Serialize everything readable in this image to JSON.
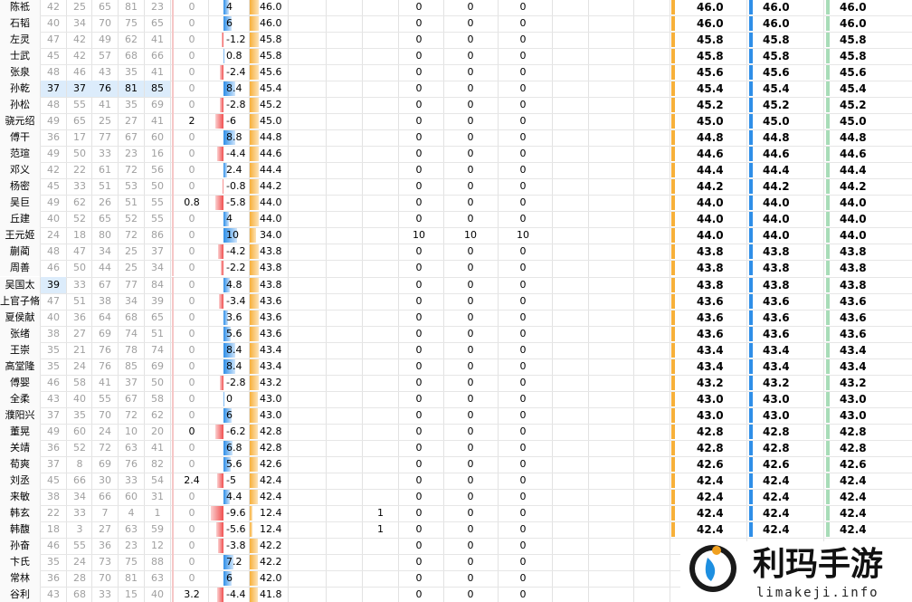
{
  "columns_count": 15,
  "rows": [
    {
      "name": "陈祗",
      "stats": [
        "42",
        "25",
        "65",
        "81",
        "23"
      ],
      "c6": "0",
      "c7": "4",
      "c8": "46.0",
      "c9": null,
      "c10": "0",
      "c11": "0",
      "c12": "0",
      "r1": "46.0",
      "r2": "46.0",
      "r3": "46.0"
    },
    {
      "name": "石韬",
      "stats": [
        "40",
        "34",
        "70",
        "75",
        "65"
      ],
      "c6": "0",
      "c7": "6",
      "c8": "46.0",
      "c9": null,
      "c10": "0",
      "c11": "0",
      "c12": "0",
      "r1": "46.0",
      "r2": "46.0",
      "r3": "46.0"
    },
    {
      "name": "左灵",
      "stats": [
        "47",
        "42",
        "49",
        "62",
        "41"
      ],
      "c6": "0",
      "c7": "-1.2",
      "c8": "45.8",
      "c9": null,
      "c10": "0",
      "c11": "0",
      "c12": "0",
      "r1": "45.8",
      "r2": "45.8",
      "r3": "45.8"
    },
    {
      "name": "士武",
      "stats": [
        "45",
        "42",
        "57",
        "68",
        "66"
      ],
      "c6": "0",
      "c7": "0.8",
      "c8": "45.8",
      "c9": null,
      "c10": "0",
      "c11": "0",
      "c12": "0",
      "r1": "45.8",
      "r2": "45.8",
      "r3": "45.8"
    },
    {
      "name": "张泉",
      "stats": [
        "48",
        "46",
        "43",
        "35",
        "41"
      ],
      "c6": "0",
      "c7": "-2.4",
      "c8": "45.6",
      "c9": null,
      "c10": "0",
      "c11": "0",
      "c12": "0",
      "r1": "45.6",
      "r2": "45.6",
      "r3": "45.6"
    },
    {
      "name": "孙乾",
      "stats": [
        "37",
        "37",
        "76",
        "81",
        "85"
      ],
      "highlight": [
        0,
        1,
        2,
        3,
        4
      ],
      "c6": "0",
      "c7": "8.4",
      "c8": "45.4",
      "c9": null,
      "c10": "0",
      "c11": "0",
      "c12": "0",
      "r1": "45.4",
      "r2": "45.4",
      "r3": "45.4"
    },
    {
      "name": "孙松",
      "stats": [
        "48",
        "55",
        "41",
        "35",
        "69"
      ],
      "c6": "0",
      "c7": "-2.8",
      "c8": "45.2",
      "c9": null,
      "c10": "0",
      "c11": "0",
      "c12": "0",
      "r1": "45.2",
      "r2": "45.2",
      "r3": "45.2"
    },
    {
      "name": "骁元绍",
      "stats": [
        "49",
        "65",
        "25",
        "27",
        "41"
      ],
      "c6": "2",
      "c7": "-6",
      "c8": "45.0",
      "c9": null,
      "c10": "0",
      "c11": "0",
      "c12": "0",
      "r1": "45.0",
      "r2": "45.0",
      "r3": "45.0"
    },
    {
      "name": "傅干",
      "stats": [
        "36",
        "17",
        "77",
        "67",
        "60"
      ],
      "c6": "0",
      "c7": "8.8",
      "c8": "44.8",
      "c9": null,
      "c10": "0",
      "c11": "0",
      "c12": "0",
      "r1": "44.8",
      "r2": "44.8",
      "r3": "44.8"
    },
    {
      "name": "范瑄",
      "stats": [
        "49",
        "50",
        "33",
        "23",
        "16"
      ],
      "c6": "0",
      "c7": "-4.4",
      "c8": "44.6",
      "c9": null,
      "c10": "0",
      "c11": "0",
      "c12": "0",
      "r1": "44.6",
      "r2": "44.6",
      "r3": "44.6"
    },
    {
      "name": "邓义",
      "stats": [
        "42",
        "22",
        "61",
        "72",
        "56"
      ],
      "c6": "0",
      "c7": "2.4",
      "c8": "44.4",
      "c9": null,
      "c10": "0",
      "c11": "0",
      "c12": "0",
      "r1": "44.4",
      "r2": "44.4",
      "r3": "44.4"
    },
    {
      "name": "杨密",
      "stats": [
        "45",
        "33",
        "51",
        "53",
        "50"
      ],
      "c6": "0",
      "c7": "-0.8",
      "c8": "44.2",
      "c9": null,
      "c10": "0",
      "c11": "0",
      "c12": "0",
      "r1": "44.2",
      "r2": "44.2",
      "r3": "44.2"
    },
    {
      "name": "吴巨",
      "stats": [
        "49",
        "62",
        "26",
        "51",
        "55"
      ],
      "c6": "0.8",
      "c7": "-5.8",
      "c8": "44.0",
      "c9": null,
      "c10": "0",
      "c11": "0",
      "c12": "0",
      "r1": "44.0",
      "r2": "44.0",
      "r3": "44.0"
    },
    {
      "name": "丘建",
      "stats": [
        "40",
        "52",
        "65",
        "52",
        "55"
      ],
      "c6": "0",
      "c7": "4",
      "c8": "44.0",
      "c9": null,
      "c10": "0",
      "c11": "0",
      "c12": "0",
      "r1": "44.0",
      "r2": "44.0",
      "r3": "44.0"
    },
    {
      "name": "王元姬",
      "stats": [
        "24",
        "18",
        "80",
        "72",
        "86"
      ],
      "c6": "0",
      "c7": "10",
      "c8": "34.0",
      "c9": null,
      "c10": "10",
      "c11": "10",
      "c12": "10",
      "r1": "44.0",
      "r2": "44.0",
      "r3": "44.0"
    },
    {
      "name": "蒯蔺",
      "stats": [
        "48",
        "47",
        "34",
        "25",
        "37"
      ],
      "c6": "0",
      "c7": "-4.2",
      "c8": "43.8",
      "c9": null,
      "c10": "0",
      "c11": "0",
      "c12": "0",
      "r1": "43.8",
      "r2": "43.8",
      "r3": "43.8"
    },
    {
      "name": "周善",
      "stats": [
        "46",
        "50",
        "44",
        "25",
        "34"
      ],
      "c6": "0",
      "c7": "-2.2",
      "c8": "43.8",
      "c9": null,
      "c10": "0",
      "c11": "0",
      "c12": "0",
      "r1": "43.8",
      "r2": "43.8",
      "r3": "43.8"
    },
    {
      "name": "吴国太",
      "stats": [
        "39",
        "33",
        "67",
        "77",
        "84"
      ],
      "highlight": [
        0
      ],
      "c6": "0",
      "c7": "4.8",
      "c8": "43.8",
      "c9": null,
      "c10": "0",
      "c11": "0",
      "c12": "0",
      "r1": "43.8",
      "r2": "43.8",
      "r3": "43.8"
    },
    {
      "name": "上官子脩",
      "stats": [
        "47",
        "51",
        "38",
        "34",
        "39"
      ],
      "c6": "0",
      "c7": "-3.4",
      "c8": "43.6",
      "c9": null,
      "c10": "0",
      "c11": "0",
      "c12": "0",
      "r1": "43.6",
      "r2": "43.6",
      "r3": "43.6"
    },
    {
      "name": "夏侯献",
      "stats": [
        "40",
        "36",
        "64",
        "68",
        "65"
      ],
      "c6": "0",
      "c7": "3.6",
      "c8": "43.6",
      "c9": null,
      "c10": "0",
      "c11": "0",
      "c12": "0",
      "r1": "43.6",
      "r2": "43.6",
      "r3": "43.6"
    },
    {
      "name": "张绪",
      "stats": [
        "38",
        "27",
        "69",
        "74",
        "51"
      ],
      "c6": "0",
      "c7": "5.6",
      "c8": "43.6",
      "c9": null,
      "c10": "0",
      "c11": "0",
      "c12": "0",
      "r1": "43.6",
      "r2": "43.6",
      "r3": "43.6"
    },
    {
      "name": "王崇",
      "stats": [
        "35",
        "21",
        "76",
        "78",
        "74"
      ],
      "c6": "0",
      "c7": "8.4",
      "c8": "43.4",
      "c9": null,
      "c10": "0",
      "c11": "0",
      "c12": "0",
      "r1": "43.4",
      "r2": "43.4",
      "r3": "43.4"
    },
    {
      "name": "高堂隆",
      "stats": [
        "35",
        "24",
        "76",
        "85",
        "69"
      ],
      "c6": "0",
      "c7": "8.4",
      "c8": "43.4",
      "c9": null,
      "c10": "0",
      "c11": "0",
      "c12": "0",
      "r1": "43.4",
      "r2": "43.4",
      "r3": "43.4"
    },
    {
      "name": "傅婴",
      "stats": [
        "46",
        "58",
        "41",
        "37",
        "50"
      ],
      "c6": "0",
      "c7": "-2.8",
      "c8": "43.2",
      "c9": null,
      "c10": "0",
      "c11": "0",
      "c12": "0",
      "r1": "43.2",
      "r2": "43.2",
      "r3": "43.2"
    },
    {
      "name": "全柔",
      "stats": [
        "43",
        "40",
        "55",
        "67",
        "58"
      ],
      "c6": "0",
      "c7": "0",
      "c8": "43.0",
      "c9": null,
      "c10": "0",
      "c11": "0",
      "c12": "0",
      "r1": "43.0",
      "r2": "43.0",
      "r3": "43.0"
    },
    {
      "name": "濮阳兴",
      "stats": [
        "37",
        "35",
        "70",
        "72",
        "62"
      ],
      "c6": "0",
      "c7": "6",
      "c8": "43.0",
      "c9": null,
      "c10": "0",
      "c11": "0",
      "c12": "0",
      "r1": "43.0",
      "r2": "43.0",
      "r3": "43.0"
    },
    {
      "name": "董晃",
      "stats": [
        "49",
        "60",
        "24",
        "10",
        "20"
      ],
      "c6": "0",
      "c7": "-6.2",
      "c8": "42.8",
      "c9": null,
      "c10": "0",
      "c11": "0",
      "c12": "0",
      "r1": "42.8",
      "r2": "42.8",
      "r3": "42.8"
    },
    {
      "name": "关靖",
      "stats": [
        "36",
        "52",
        "72",
        "63",
        "41"
      ],
      "c6": "0",
      "c7": "6.8",
      "c8": "42.8",
      "c9": null,
      "c10": "0",
      "c11": "0",
      "c12": "0",
      "r1": "42.8",
      "r2": "42.8",
      "r3": "42.8"
    },
    {
      "name": "荀爽",
      "stats": [
        "37",
        "8",
        "69",
        "76",
        "82"
      ],
      "c6": "0",
      "c7": "5.6",
      "c8": "42.6",
      "c9": null,
      "c10": "0",
      "c11": "0",
      "c12": "0",
      "r1": "42.6",
      "r2": "42.6",
      "r3": "42.6"
    },
    {
      "name": "刘丞",
      "stats": [
        "45",
        "66",
        "30",
        "33",
        "54"
      ],
      "c6": "2.4",
      "c7": "-5",
      "c8": "42.4",
      "c9": null,
      "c10": "0",
      "c11": "0",
      "c12": "0",
      "r1": "42.4",
      "r2": "42.4",
      "r3": "42.4"
    },
    {
      "name": "来敏",
      "stats": [
        "38",
        "34",
        "66",
        "60",
        "31"
      ],
      "c6": "0",
      "c7": "4.4",
      "c8": "42.4",
      "c9": null,
      "c10": "0",
      "c11": "0",
      "c12": "0",
      "r1": "42.4",
      "r2": "42.4",
      "r3": "42.4"
    },
    {
      "name": "韩玄",
      "stats": [
        "22",
        "33",
        "7",
        "4",
        "1"
      ],
      "c6": "0",
      "c7": "-9.6",
      "c8": "12.4",
      "c9": "1",
      "c10": "0",
      "c11": "0",
      "c12": "0",
      "r1": "42.4",
      "r2": "42.4",
      "r3": "42.4"
    },
    {
      "name": "韩馥",
      "stats": [
        "18",
        "3",
        "27",
        "63",
        "59"
      ],
      "c6": "0",
      "c7": "-5.6",
      "c8": "12.4",
      "c9": "1",
      "c10": "0",
      "c11": "0",
      "c12": "0",
      "r1": "42.4",
      "r2": "42.4",
      "r3": "42.4"
    },
    {
      "name": "孙奋",
      "stats": [
        "46",
        "55",
        "36",
        "23",
        "12"
      ],
      "c6": "0",
      "c7": "-3.8",
      "c8": "42.2",
      "c9": null,
      "c10": "0",
      "c11": "0",
      "c12": "0",
      "r1": null,
      "r2": null,
      "r3": null
    },
    {
      "name": "卞氏",
      "stats": [
        "35",
        "24",
        "73",
        "75",
        "88"
      ],
      "c6": "0",
      "c7": "7.2",
      "c8": "42.2",
      "c9": null,
      "c10": "0",
      "c11": "0",
      "c12": "0",
      "r1": null,
      "r2": null,
      "r3": null
    },
    {
      "name": "常林",
      "stats": [
        "36",
        "28",
        "70",
        "81",
        "63"
      ],
      "c6": "0",
      "c7": "6",
      "c8": "42.0",
      "c9": null,
      "c10": "0",
      "c11": "0",
      "c12": "0",
      "r1": null,
      "r2": null,
      "r3": null
    },
    {
      "name": "谷利",
      "stats": [
        "43",
        "68",
        "33",
        "15",
        "40"
      ],
      "c6": "3.2",
      "c7": "-4.4",
      "c8": "41.8",
      "c9": null,
      "c10": "0",
      "c11": "0",
      "c12": "0",
      "r1": null,
      "r2": null,
      "r3": null
    }
  ],
  "watermark": {
    "title": "利玛手游",
    "url": "limakeji.info"
  }
}
